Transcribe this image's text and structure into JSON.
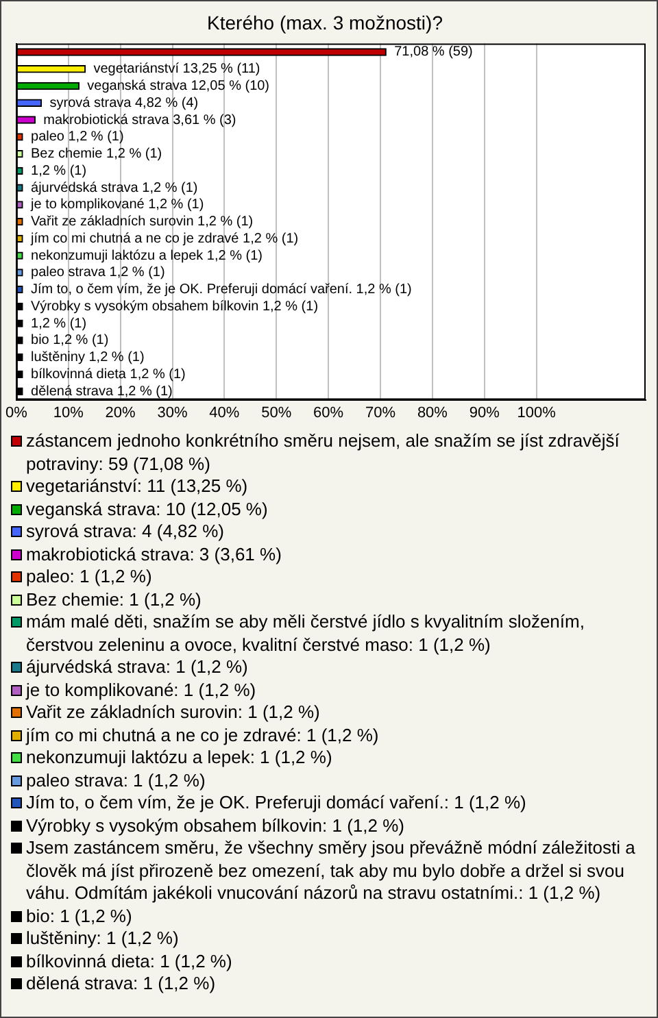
{
  "chart_data": {
    "type": "bar",
    "orientation": "horizontal",
    "stacked": true,
    "title": "Kterého (max. 3 možnosti)?",
    "categories": [
      null,
      null,
      null,
      null,
      null,
      null,
      null,
      null,
      null,
      null,
      null,
      null,
      null,
      null,
      null,
      null,
      null,
      null,
      null,
      null,
      null
    ],
    "series": [
      {
        "name": "zástancem jednoho konkrétního směru nejsem, ale snažím se jíst zdravější potraviny: 59 (71,08 %)",
        "color": "#c00000",
        "values": [
          71.08,
          null,
          null,
          null,
          null,
          null,
          null,
          null,
          null,
          null,
          null,
          null,
          null,
          null,
          null,
          null,
          null,
          null,
          null,
          null,
          null
        ],
        "value_labels": [
          "71,08 % (59)",
          null,
          null,
          null,
          null,
          null,
          null,
          null,
          null,
          null,
          null,
          null,
          null,
          null,
          null,
          null,
          null,
          null,
          null,
          null,
          null
        ]
      },
      {
        "name": "vegetariánství: 11 (13,25 %)",
        "color": "#ffee00",
        "values": [
          null,
          13.25,
          null,
          null,
          null,
          null,
          null,
          null,
          null,
          null,
          null,
          null,
          null,
          null,
          null,
          null,
          null,
          null,
          null,
          null,
          null
        ],
        "value_labels": [
          null,
          "vegetariánství 13,25 % (11)",
          null,
          null,
          null,
          null,
          null,
          null,
          null,
          null,
          null,
          null,
          null,
          null,
          null,
          null,
          null,
          null,
          null,
          null,
          null
        ]
      },
      {
        "name": "veganská strava: 10 (12,05 %)",
        "color": "#00aa00",
        "values": [
          null,
          null,
          12.05,
          null,
          null,
          null,
          null,
          null,
          null,
          null,
          null,
          null,
          null,
          null,
          null,
          null,
          null,
          null,
          null,
          null,
          null
        ],
        "value_labels": [
          null,
          null,
          "veganská strava 12,05 % (10)",
          null,
          null,
          null,
          null,
          null,
          null,
          null,
          null,
          null,
          null,
          null,
          null,
          null,
          null,
          null,
          null,
          null,
          null
        ]
      },
      {
        "name": "syrová strava: 4 (4,82 %)",
        "color": "#4466ff",
        "values": [
          null,
          null,
          null,
          4.82,
          null,
          null,
          null,
          null,
          null,
          null,
          null,
          null,
          null,
          null,
          null,
          null,
          null,
          null,
          null,
          null,
          null
        ],
        "value_labels": [
          null,
          null,
          null,
          "syrová strava 4,82 % (4)",
          null,
          null,
          null,
          null,
          null,
          null,
          null,
          null,
          null,
          null,
          null,
          null,
          null,
          null,
          null,
          null,
          null
        ]
      },
      {
        "name": "makrobiotická strava: 3 (3,61 %)",
        "color": "#cc00cc",
        "values": [
          null,
          null,
          null,
          null,
          3.61,
          null,
          null,
          null,
          null,
          null,
          null,
          null,
          null,
          null,
          null,
          null,
          null,
          null,
          null,
          null,
          null
        ],
        "value_labels": [
          null,
          null,
          null,
          null,
          "makrobiotická strava 3,61 % (3)",
          null,
          null,
          null,
          null,
          null,
          null,
          null,
          null,
          null,
          null,
          null,
          null,
          null,
          null,
          null,
          null
        ]
      },
      {
        "name": "paleo: 1 (1,2 %)",
        "color": "#e03300",
        "values": [
          null,
          null,
          null,
          null,
          null,
          1.2,
          null,
          null,
          null,
          null,
          null,
          null,
          null,
          null,
          null,
          null,
          null,
          null,
          null,
          null,
          null
        ],
        "value_labels": [
          null,
          null,
          null,
          null,
          null,
          "paleo 1,2 % (1)",
          null,
          null,
          null,
          null,
          null,
          null,
          null,
          null,
          null,
          null,
          null,
          null,
          null,
          null,
          null
        ]
      },
      {
        "name": "Bez chemie: 1 (1,2 %)",
        "color": "#ccff99",
        "values": [
          null,
          null,
          null,
          null,
          null,
          null,
          1.2,
          null,
          null,
          null,
          null,
          null,
          null,
          null,
          null,
          null,
          null,
          null,
          null,
          null,
          null
        ],
        "value_labels": [
          null,
          null,
          null,
          null,
          null,
          null,
          "Bez chemie 1,2 % (1)",
          null,
          null,
          null,
          null,
          null,
          null,
          null,
          null,
          null,
          null,
          null,
          null,
          null,
          null
        ]
      },
      {
        "name": "mám malé děti, snažím se aby měli čerstvé jídlo s kvyalitním složením, čerstvou zeleninu a ovoce, kvalitní čerstvé maso: 1 (1,2 %)",
        "color": "#009966",
        "values": [
          null,
          null,
          null,
          null,
          null,
          null,
          null,
          1.2,
          null,
          null,
          null,
          null,
          null,
          null,
          null,
          null,
          null,
          null,
          null,
          null,
          null
        ],
        "value_labels": [
          null,
          null,
          null,
          null,
          null,
          null,
          null,
          "1,2 % (1)",
          null,
          null,
          null,
          null,
          null,
          null,
          null,
          null,
          null,
          null,
          null,
          null,
          null
        ]
      },
      {
        "name": "ájurvédská strava: 1 (1,2 %)",
        "color": "#1a7a8a",
        "values": [
          null,
          null,
          null,
          null,
          null,
          null,
          null,
          null,
          1.2,
          null,
          null,
          null,
          null,
          null,
          null,
          null,
          null,
          null,
          null,
          null,
          null
        ],
        "value_labels": [
          null,
          null,
          null,
          null,
          null,
          null,
          null,
          null,
          "ájurvédská strava 1,2 % (1)",
          null,
          null,
          null,
          null,
          null,
          null,
          null,
          null,
          null,
          null,
          null,
          null
        ]
      },
      {
        "name": "je to komplikované: 1 (1,2 %)",
        "color": "#b060c0",
        "values": [
          null,
          null,
          null,
          null,
          null,
          null,
          null,
          null,
          null,
          1.2,
          null,
          null,
          null,
          null,
          null,
          null,
          null,
          null,
          null,
          null,
          null
        ],
        "value_labels": [
          null,
          null,
          null,
          null,
          null,
          null,
          null,
          null,
          null,
          "je to komplikované 1,2 % (1)",
          null,
          null,
          null,
          null,
          null,
          null,
          null,
          null,
          null,
          null,
          null
        ]
      },
      {
        "name": "Vařit ze základních surovin: 1 (1,2 %)",
        "color": "#e07000",
        "values": [
          null,
          null,
          null,
          null,
          null,
          null,
          null,
          null,
          null,
          null,
          1.2,
          null,
          null,
          null,
          null,
          null,
          null,
          null,
          null,
          null,
          null
        ],
        "value_labels": [
          null,
          null,
          null,
          null,
          null,
          null,
          null,
          null,
          null,
          null,
          "Vařit ze základních surovin 1,2 % (1)",
          null,
          null,
          null,
          null,
          null,
          null,
          null,
          null,
          null,
          null
        ]
      },
      {
        "name": "jím co mi chutná a ne co je zdravé: 1 (1,2 %)",
        "color": "#e0b000",
        "values": [
          null,
          null,
          null,
          null,
          null,
          null,
          null,
          null,
          null,
          null,
          null,
          1.2,
          null,
          null,
          null,
          null,
          null,
          null,
          null,
          null,
          null
        ],
        "value_labels": [
          null,
          null,
          null,
          null,
          null,
          null,
          null,
          null,
          null,
          null,
          null,
          "jím co mi chutná a ne co je zdravé 1,2 % (1)",
          null,
          null,
          null,
          null,
          null,
          null,
          null,
          null,
          null
        ]
      },
      {
        "name": "nekonzumuji laktózu a lepek: 1 (1,2 %)",
        "color": "#44dd44",
        "values": [
          null,
          null,
          null,
          null,
          null,
          null,
          null,
          null,
          null,
          null,
          null,
          null,
          1.2,
          null,
          null,
          null,
          null,
          null,
          null,
          null,
          null
        ],
        "value_labels": [
          null,
          null,
          null,
          null,
          null,
          null,
          null,
          null,
          null,
          null,
          null,
          null,
          "nekonzumuji laktózu a lepek 1,2 % (1)",
          null,
          null,
          null,
          null,
          null,
          null,
          null,
          null
        ]
      },
      {
        "name": "paleo strava: 1 (1,2 %)",
        "color": "#6699dd",
        "values": [
          null,
          null,
          null,
          null,
          null,
          null,
          null,
          null,
          null,
          null,
          null,
          null,
          null,
          1.2,
          null,
          null,
          null,
          null,
          null,
          null,
          null
        ],
        "value_labels": [
          null,
          null,
          null,
          null,
          null,
          null,
          null,
          null,
          null,
          null,
          null,
          null,
          null,
          "paleo strava 1,2 % (1)",
          null,
          null,
          null,
          null,
          null,
          null,
          null
        ]
      },
      {
        "name": "Jím to, o čem vím, že je OK. Preferuji domácí vaření.: 1 (1,2 %)",
        "color": "#2255bb",
        "values": [
          null,
          null,
          null,
          null,
          null,
          null,
          null,
          null,
          null,
          null,
          null,
          null,
          null,
          null,
          1.2,
          null,
          null,
          null,
          null,
          null,
          null
        ],
        "value_labels": [
          null,
          null,
          null,
          null,
          null,
          null,
          null,
          null,
          null,
          null,
          null,
          null,
          null,
          null,
          "Jím to, o čem vím, že je OK. Preferuji domácí vaření. 1,2 % (1)",
          null,
          null,
          null,
          null,
          null,
          null
        ]
      },
      {
        "name": "Výrobky s vysokým obsahem bílkovin: 1 (1,2 %)",
        "color": "#000000",
        "values": [
          null,
          null,
          null,
          null,
          null,
          null,
          null,
          null,
          null,
          null,
          null,
          null,
          null,
          null,
          null,
          1.2,
          null,
          null,
          null,
          null,
          null
        ],
        "value_labels": [
          null,
          null,
          null,
          null,
          null,
          null,
          null,
          null,
          null,
          null,
          null,
          null,
          null,
          null,
          null,
          "Výrobky s vysokým obsahem bílkovin 1,2 % (1)",
          null,
          null,
          null,
          null,
          null
        ]
      },
      {
        "name": "Jsem zastáncem směru, že všechny směry jsou převážně módní záležitosti a člověk má jíst přirozeně bez omezení, tak aby mu bylo dobře a držel si svou váhu. Odmítám jakékoli vnucování názorů na stravu ostatními.: 1 (1,2 %)",
        "color": "#000000",
        "values": [
          null,
          null,
          null,
          null,
          null,
          null,
          null,
          null,
          null,
          null,
          null,
          null,
          null,
          null,
          null,
          null,
          1.2,
          null,
          null,
          null,
          null
        ],
        "value_labels": [
          null,
          null,
          null,
          null,
          null,
          null,
          null,
          null,
          null,
          null,
          null,
          null,
          null,
          null,
          null,
          null,
          "1,2 % (1)",
          null,
          null,
          null,
          null
        ]
      },
      {
        "name": "bio: 1 (1,2 %)",
        "color": "#000000",
        "values": [
          null,
          null,
          null,
          null,
          null,
          null,
          null,
          null,
          null,
          null,
          null,
          null,
          null,
          null,
          null,
          null,
          null,
          1.2,
          null,
          null,
          null
        ],
        "value_labels": [
          null,
          null,
          null,
          null,
          null,
          null,
          null,
          null,
          null,
          null,
          null,
          null,
          null,
          null,
          null,
          null,
          null,
          "bio 1,2 % (1)",
          null,
          null,
          null
        ]
      },
      {
        "name": "luštěniny: 1 (1,2 %)",
        "color": "#000000",
        "values": [
          null,
          null,
          null,
          null,
          null,
          null,
          null,
          null,
          null,
          null,
          null,
          null,
          null,
          null,
          null,
          null,
          null,
          null,
          1.2,
          null,
          null
        ],
        "value_labels": [
          null,
          null,
          null,
          null,
          null,
          null,
          null,
          null,
          null,
          null,
          null,
          null,
          null,
          null,
          null,
          null,
          null,
          null,
          "luštěniny 1,2 % (1)",
          null,
          null
        ]
      },
      {
        "name": "bílkovinná dieta: 1 (1,2 %)",
        "color": "#000000",
        "values": [
          null,
          null,
          null,
          null,
          null,
          null,
          null,
          null,
          null,
          null,
          null,
          null,
          null,
          null,
          null,
          null,
          null,
          null,
          null,
          1.2,
          null
        ],
        "value_labels": [
          null,
          null,
          null,
          null,
          null,
          null,
          null,
          null,
          null,
          null,
          null,
          null,
          null,
          null,
          null,
          null,
          null,
          null,
          null,
          "bílkovinná dieta 1,2 % (1)",
          null
        ]
      },
      {
        "name": "dělená strava: 1 (1,2 %)",
        "color": "#000000",
        "values": [
          null,
          null,
          null,
          null,
          null,
          null,
          null,
          null,
          null,
          null,
          null,
          null,
          null,
          null,
          null,
          null,
          null,
          null,
          null,
          null,
          1.2
        ],
        "value_labels": [
          null,
          null,
          null,
          null,
          null,
          null,
          null,
          null,
          null,
          null,
          null,
          null,
          null,
          null,
          null,
          null,
          null,
          null,
          null,
          null,
          "dělená strava 1,2 % (1)"
        ]
      }
    ],
    "xlim": [
      0,
      121
    ],
    "xticks": [
      {
        "value": 0,
        "label": "0%"
      },
      {
        "value": 10,
        "label": "10%"
      },
      {
        "value": 20,
        "label": "20%"
      },
      {
        "value": 30,
        "label": "30%"
      },
      {
        "value": 40,
        "label": "40%"
      },
      {
        "value": 50,
        "label": "50%"
      },
      {
        "value": 60,
        "label": "60%"
      },
      {
        "value": 70,
        "label": "70%"
      },
      {
        "value": 80,
        "label": "80%"
      },
      {
        "value": 90,
        "label": "90%"
      },
      {
        "value": 100,
        "label": "100%"
      }
    ],
    "grid": "x",
    "tick_labels": "x",
    "legend": "bottom"
  }
}
